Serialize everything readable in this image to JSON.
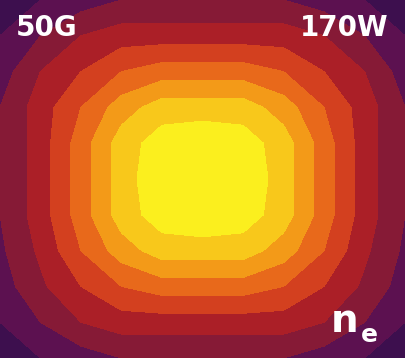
{
  "chart_data": {
    "type": "contour",
    "annotations": [
      "50G",
      "170W"
    ],
    "label": {
      "symbol": "n",
      "subscript": "e"
    },
    "tick_labels": false,
    "levels": [
      0,
      1,
      2,
      3,
      4,
      5,
      6,
      7,
      8,
      9.5
    ],
    "colors": [
      "#3d0f4e",
      "#5c1150",
      "#861a36",
      "#ab1f27",
      "#d3401f",
      "#e8691b",
      "#f39a18",
      "#f8c81b",
      "#fbef1e"
    ],
    "cells": [
      [
        0.5,
        1,
        1.5,
        2,
        2,
        2,
        2,
        2,
        1.5,
        1,
        0.5
      ],
      [
        1,
        2,
        3,
        3.5,
        3.5,
        3.5,
        3.5,
        3.5,
        3,
        2,
        1
      ],
      [
        1.5,
        3,
        4,
        5,
        5.5,
        5.5,
        5.5,
        5,
        4,
        3,
        1.5
      ],
      [
        2,
        3.5,
        5,
        6.5,
        7.5,
        7.5,
        7.5,
        6.5,
        5,
        3.5,
        2
      ],
      [
        2,
        3.5,
        5.5,
        7.5,
        8.5,
        8.8,
        8.5,
        7.5,
        5.5,
        3.5,
        2
      ],
      [
        2,
        3.5,
        5.5,
        7.5,
        8.8,
        9,
        8.8,
        7.5,
        5.5,
        3.5,
        2
      ],
      [
        2,
        3.5,
        5.5,
        7.5,
        8.5,
        8.8,
        8.5,
        7.5,
        5.5,
        3.5,
        2
      ],
      [
        1.8,
        3.2,
        5,
        6.5,
        7.5,
        7.5,
        7.5,
        6.5,
        5,
        3.2,
        1.8
      ],
      [
        1.5,
        2.8,
        4,
        5,
        5.5,
        5.5,
        5.5,
        5,
        4,
        2.8,
        1.5
      ],
      [
        1,
        2,
        3,
        3.5,
        3.5,
        3.5,
        3.5,
        3.5,
        3,
        2,
        1
      ],
      [
        0.5,
        1,
        1.5,
        2,
        2,
        2,
        2,
        2,
        1.5,
        1,
        0.5
      ]
    ]
  }
}
